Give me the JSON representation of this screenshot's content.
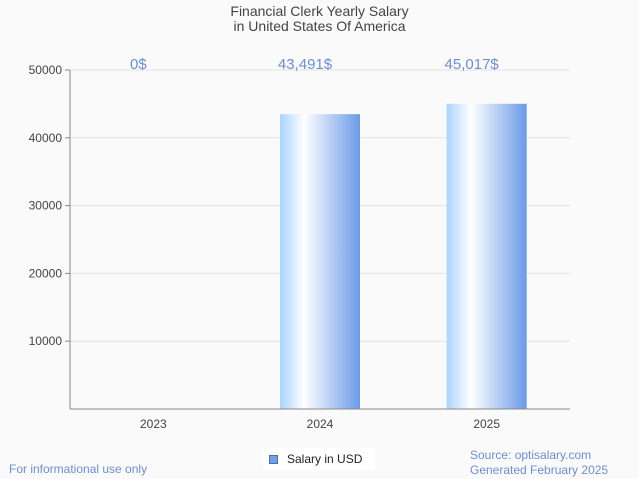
{
  "chart_data": {
    "type": "bar",
    "title": "Financial Clerk Yearly Salary",
    "subtitle": "in United States Of America",
    "categories": [
      "2023",
      "2024",
      "2025"
    ],
    "series": [
      {
        "name": "Salary in USD",
        "values": [
          0,
          43491,
          45017
        ]
      }
    ],
    "data_labels": [
      "0$",
      "43,491$",
      "45,017$"
    ],
    "xlabel": "",
    "ylabel": "",
    "ylim": [
      0,
      50000
    ],
    "yticks": [
      10000,
      20000,
      30000,
      40000,
      50000
    ],
    "ytick_labels": [
      "10000",
      "20000",
      "30000",
      "40000",
      "50000"
    ],
    "grid": true,
    "legend_position": "bottom-center",
    "colors": {
      "bar_light": "#aad4ff",
      "bar_mid": "#ffffff",
      "bar_dark": "#6a9ae8",
      "label": "#6b8fd6"
    }
  },
  "footer": {
    "disclaimer": "For informational use only",
    "source": "Source: optisalary.com",
    "generated": "Generated February 2025"
  }
}
